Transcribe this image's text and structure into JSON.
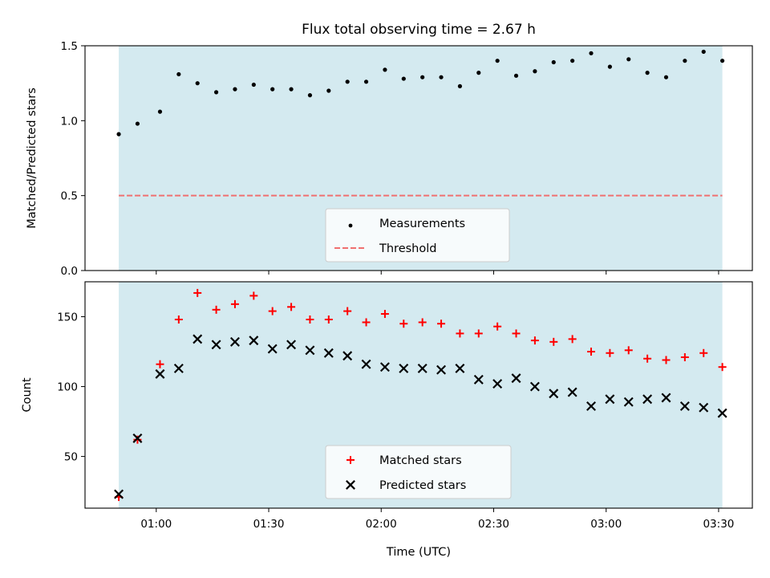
{
  "figure": {
    "title": "Flux total observing time = 2.67 h",
    "x_label": "Time (UTC)",
    "x_tick_labels": [
      "01:00",
      "01:30",
      "02:00",
      "02:30",
      "03:00",
      "03:30"
    ]
  },
  "colors": {
    "shade": "#d4eaf0",
    "threshold": "#f07070",
    "matched": "#ff0000",
    "predicted": "#000000",
    "measurement": "#000000"
  },
  "chart_data": [
    {
      "type": "scatter",
      "ylabel": "Matched/Predicted stars",
      "xlim": [
        "00:41",
        "03:39"
      ],
      "ylim": [
        0,
        1.5
      ],
      "y_ticks": [
        "0.0",
        "0.5",
        "1.0",
        "1.5"
      ],
      "shaded_span": [
        "00:50",
        "03:31"
      ],
      "threshold": 0.5,
      "legend_position": "lower center",
      "legend": [
        "Measurements",
        "Threshold"
      ],
      "x": [
        "00:50",
        "00:55",
        "01:01",
        "01:06",
        "01:11",
        "01:16",
        "01:21",
        "01:26",
        "01:31",
        "01:36",
        "01:41",
        "01:46",
        "01:51",
        "01:56",
        "02:01",
        "02:06",
        "02:11",
        "02:16",
        "02:21",
        "02:26",
        "02:31",
        "02:36",
        "02:41",
        "02:46",
        "02:51",
        "02:56",
        "03:01",
        "03:06",
        "03:11",
        "03:16",
        "03:21",
        "03:26",
        "03:31"
      ],
      "series": [
        {
          "name": "Measurements",
          "values": [
            0.91,
            0.98,
            1.06,
            1.31,
            1.25,
            1.19,
            1.21,
            1.24,
            1.21,
            1.21,
            1.17,
            1.2,
            1.26,
            1.26,
            1.34,
            1.28,
            1.29,
            1.29,
            1.23,
            1.32,
            1.4,
            1.3,
            1.33,
            1.39,
            1.4,
            1.45,
            1.36,
            1.41,
            1.32,
            1.29,
            1.4,
            1.46,
            1.4
          ]
        }
      ]
    },
    {
      "type": "scatter",
      "ylabel": "Count",
      "xlim": [
        "00:41",
        "03:39"
      ],
      "ylim": [
        13,
        175
      ],
      "y_ticks": [
        "50",
        "100",
        "150"
      ],
      "shaded_span": [
        "00:50",
        "03:31"
      ],
      "legend_position": "lower center",
      "legend": [
        "Matched stars",
        "Predicted stars"
      ],
      "x": [
        "00:50",
        "00:55",
        "01:01",
        "01:06",
        "01:11",
        "01:16",
        "01:21",
        "01:26",
        "01:31",
        "01:36",
        "01:41",
        "01:46",
        "01:51",
        "01:56",
        "02:01",
        "02:06",
        "02:11",
        "02:16",
        "02:21",
        "02:26",
        "02:31",
        "02:36",
        "02:41",
        "02:46",
        "02:51",
        "02:56",
        "03:01",
        "03:06",
        "03:11",
        "03:16",
        "03:21",
        "03:26",
        "03:31"
      ],
      "series": [
        {
          "name": "Matched stars",
          "values": [
            21,
            62,
            116,
            148,
            167,
            155,
            159,
            165,
            154,
            157,
            148,
            148,
            154,
            146,
            152,
            145,
            146,
            145,
            138,
            138,
            143,
            138,
            133,
            132,
            134,
            125,
            124,
            126,
            120,
            119,
            121,
            124,
            114
          ]
        },
        {
          "name": "Predicted stars",
          "values": [
            23,
            63,
            109,
            113,
            134,
            130,
            132,
            133,
            127,
            130,
            126,
            124,
            122,
            116,
            114,
            113,
            113,
            112,
            113,
            105,
            102,
            106,
            100,
            95,
            96,
            86,
            91,
            89,
            91,
            92,
            86,
            85,
            81
          ]
        }
      ]
    }
  ]
}
